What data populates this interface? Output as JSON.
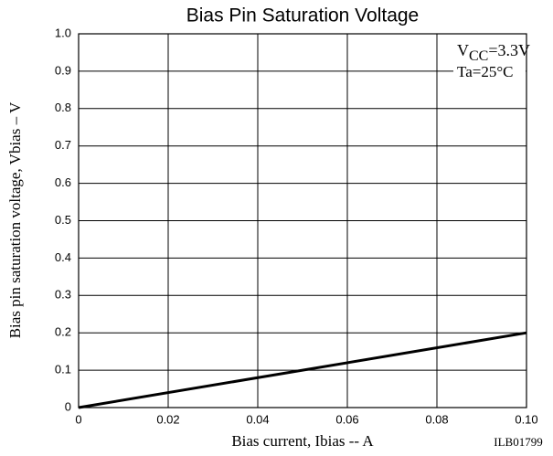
{
  "chart_data": {
    "type": "line",
    "title": "Bias Pin Saturation Voltage",
    "x_label": "Bias current, Ibias -- A",
    "y_label": "Bias pin saturation voltage, Vbias – V",
    "annotations": [
      [
        "V",
        "CC",
        "=3.3V"
      ],
      "Ta=25°C"
    ],
    "figure_id": "ILB01799",
    "x": [
      0,
      0.1
    ],
    "series": [
      {
        "name": "Vbias",
        "color": "#000000",
        "values": [
          0,
          0.2
        ]
      }
    ],
    "xlim": [
      0,
      0.1
    ],
    "ylim": [
      0,
      1
    ],
    "xticks": [
      0,
      0.02,
      0.04,
      0.06,
      0.08,
      {
        "value": 0.1,
        "label": "0.10"
      }
    ],
    "yticks": [
      0,
      0.1,
      0.2,
      0.3,
      0.4,
      0.5,
      0.6,
      0.7,
      0.8,
      0.9,
      {
        "value": 1,
        "label": "1.0"
      }
    ],
    "grid": true
  }
}
